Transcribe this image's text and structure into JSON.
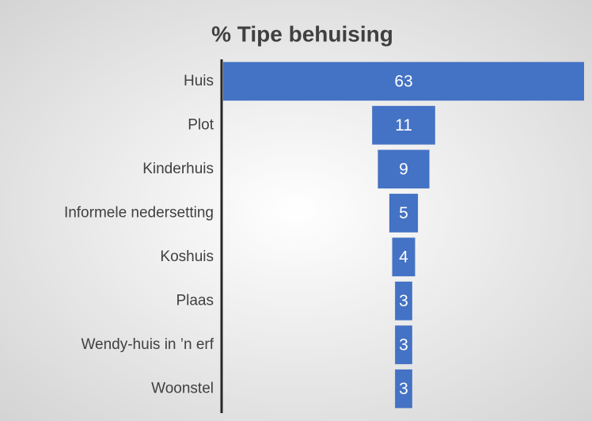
{
  "chart_data": {
    "type": "funnel",
    "title": "% Tipe behuising",
    "categories": [
      "Huis",
      "Plot",
      "Kinderhuis",
      "Informele nedersetting",
      "Koshuis",
      "Plaas",
      "Wendy-huis in ’n erf",
      "Woonstel"
    ],
    "values": [
      63,
      11,
      9,
      5,
      4,
      3,
      3,
      3
    ],
    "color": "#4472c4"
  }
}
